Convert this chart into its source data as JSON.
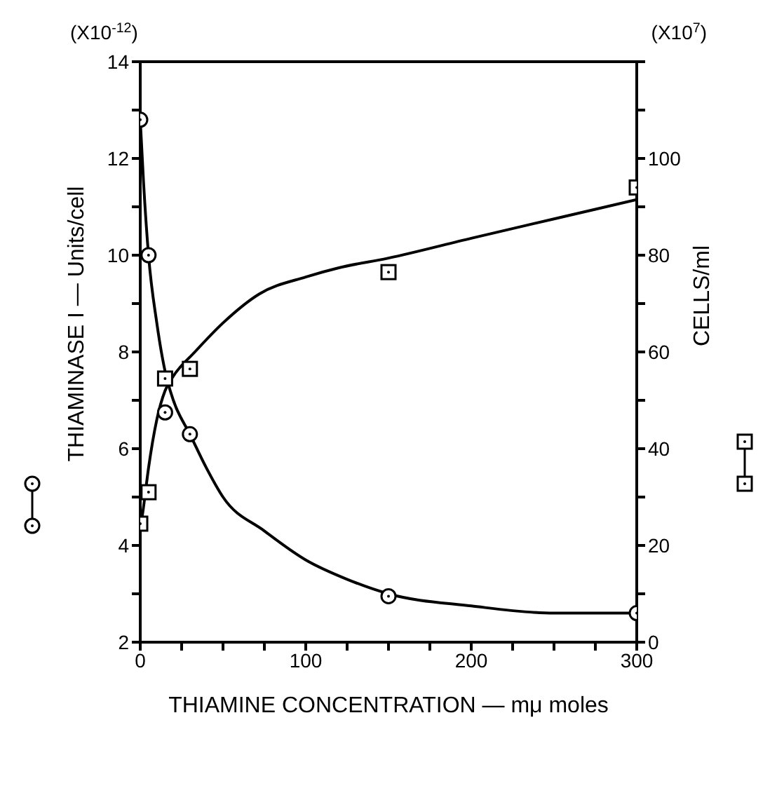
{
  "chart_data": {
    "type": "scatter",
    "xlabel": "THIAMINE CONCENTRATION — mμ moles",
    "ylabel": "THIAMINASE I — Units/cell",
    "y2label": "CELLS/ml",
    "annotations": [
      "(X10$^{-12}$)",
      "(X10$^{7}$)"
    ],
    "xlim": [
      0,
      300
    ],
    "xticks": [
      0,
      {
        "value": 25,
        "label": null
      },
      {
        "value": 50,
        "label": null
      },
      {
        "value": 75,
        "label": null
      },
      100,
      {
        "value": 125,
        "label": null
      },
      {
        "value": 150,
        "label": null
      },
      {
        "value": 175,
        "label": null
      },
      200,
      {
        "value": 225,
        "label": null
      },
      {
        "value": 250,
        "label": null
      },
      {
        "value": 275,
        "label": null
      },
      300
    ],
    "ylim": [
      2,
      14
    ],
    "yticks": [
      2,
      {
        "value": 3,
        "label": null
      },
      4,
      {
        "value": 5,
        "label": null
      },
      6,
      {
        "value": 7,
        "label": null
      },
      8,
      {
        "value": 9,
        "label": null
      },
      10,
      {
        "value": 11,
        "label": null
      },
      12,
      {
        "value": 13,
        "label": null
      },
      14
    ],
    "y2lim": [
      0,
      120
    ],
    "y2ticks": [
      0,
      {
        "value": 10,
        "label": null
      },
      20,
      {
        "value": 30,
        "label": null
      },
      40,
      {
        "value": 50,
        "label": null
      },
      60,
      {
        "value": 70,
        "label": null
      },
      80,
      {
        "value": 90,
        "label": null
      },
      100,
      {
        "value": 110,
        "label": null
      },
      {
        "value": 120,
        "label": null
      }
    ],
    "grid": false,
    "legend": false,
    "series": [
      {
        "marker": "circle",
        "color": "#000000",
        "x": [
          0,
          5,
          15,
          30,
          150,
          300
        ],
        "values": [
          12.8,
          10,
          6.75,
          6.3,
          2.95,
          2.6
        ]
      },
      {
        "marker": "square",
        "axis": "y2",
        "color": "#000000",
        "x": [
          0,
          5,
          15,
          30,
          150,
          300
        ],
        "values": [
          24.5,
          31,
          54.5,
          56.5,
          76.5,
          94
        ]
      },
      {
        "type": "line",
        "marker": "none",
        "color": "#000000",
        "x": [
          0,
          2,
          5,
          10,
          15,
          20,
          30,
          40,
          50,
          75,
          100,
          125,
          150,
          200,
          250,
          300
        ],
        "values": [
          12.8,
          11.5,
          10,
          8.6,
          7.6,
          7,
          6.3,
          5.6,
          5,
          4.3,
          3.7,
          3.3,
          3,
          2.75,
          2.6,
          2.6
        ]
      },
      {
        "type": "line",
        "marker": "none",
        "axis": "y2",
        "color": "#000000",
        "x": [
          0,
          2,
          5,
          10,
          15,
          20,
          33,
          50,
          72,
          100,
          120,
          150,
          200,
          250,
          300
        ],
        "values": [
          23,
          28,
          36,
          46,
          52,
          55,
          60,
          66,
          72,
          75.5,
          77.4,
          79.4,
          83.5,
          87.5,
          91.5
        ]
      }
    ]
  }
}
